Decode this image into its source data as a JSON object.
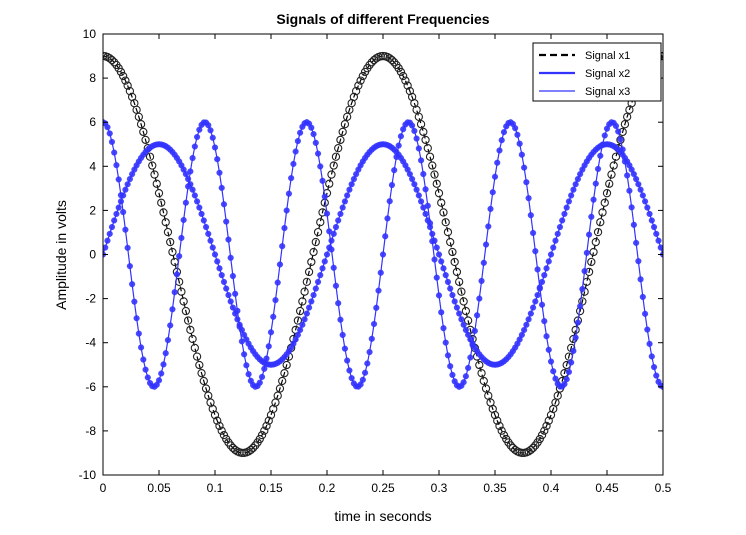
{
  "chart_data": {
    "type": "line",
    "title": "Signals of different Frequencies",
    "xlabel": "time in seconds",
    "ylabel": "Amplitude in volts",
    "xlim": [
      0,
      0.5
    ],
    "ylim": [
      -10,
      10
    ],
    "xticks": [
      0,
      0.05,
      0.1,
      0.15,
      0.2,
      0.25,
      0.3,
      0.35,
      0.4,
      0.45,
      0.5
    ],
    "xtick_labels": [
      "0",
      "0.05",
      "0.1",
      "0.15",
      "0.2",
      "0.25",
      "0.3",
      "0.35",
      "0.4",
      "0.45",
      "0.5"
    ],
    "yticks": [
      -10,
      -8,
      -6,
      -4,
      -2,
      0,
      2,
      4,
      6,
      8,
      10
    ],
    "ytick_labels": [
      "-10",
      "-8",
      "-6",
      "-4",
      "-2",
      "0",
      "2",
      "4",
      "6",
      "8",
      "10"
    ],
    "grid": false,
    "legend_position": "top-right",
    "series": [
      {
        "name": "Signal x1",
        "color": "#000000",
        "line_style": "dashed",
        "marker": "open-circle",
        "function": "9*cos(2*pi*4*t)",
        "amplitude": 9,
        "frequency_hz": 4,
        "waveform": "cosine"
      },
      {
        "name": "Signal x2",
        "color": "#3333ff",
        "line_style": "solid",
        "marker": "filled-circle",
        "function": "5*sin(2*pi*5*t)",
        "amplitude": 5,
        "frequency_hz": 5,
        "waveform": "sine"
      },
      {
        "name": "Signal x3",
        "color": "#3333ff",
        "line_style": "solid",
        "marker": "filled-circle",
        "function": "6*cos(2*pi*11*t)",
        "amplitude": 6,
        "frequency_hz": 11,
        "waveform": "cosine"
      }
    ],
    "sample_step": 0.002
  }
}
